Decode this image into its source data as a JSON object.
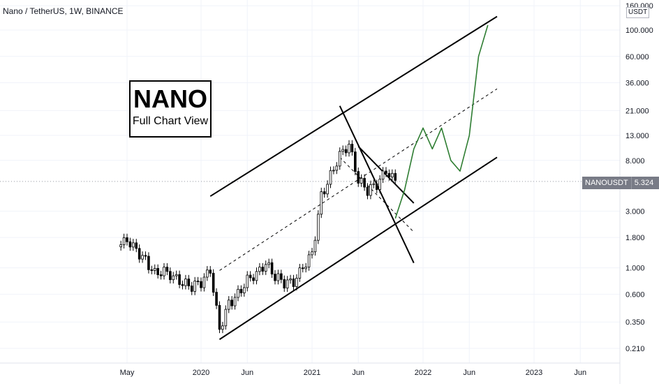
{
  "header": {
    "title": "Nano / TetherUS, 1W, BINANCE"
  },
  "annotation": {
    "title": "NANO",
    "subtitle": "Full Chart View"
  },
  "price_axis": {
    "unit": "USDT",
    "current_symbol": "NANOUSDT",
    "current_value": "5.324"
  },
  "colors": {
    "projection": "#2e7d32",
    "lines": "#000000",
    "candles": "#000000",
    "grid": "#f0f3fa",
    "axis_text": "#131722"
  },
  "chart_data": {
    "type": "line",
    "y_scale": "log",
    "x_axis_labels": [
      "May",
      "2020",
      "Jun",
      "2021",
      "Jun",
      "2022",
      "Jun",
      "2023",
      "Jun"
    ],
    "y_axis_labels": [
      "160.000",
      "100.000",
      "60.000",
      "36.000",
      "21.000",
      "13.000",
      "8.000",
      "5.324",
      "3.000",
      "1.800",
      "1.000",
      "0.600",
      "0.350",
      "0.210"
    ],
    "current_price": 5.324,
    "series": [
      {
        "role": "price",
        "x": [
          "2019-04",
          "2019-05",
          "2019-06",
          "2019-07",
          "2019-08",
          "2019-09",
          "2019-10",
          "2019-11",
          "2019-12",
          "2020-01",
          "2020-02",
          "2020-03",
          "2020-04",
          "2020-05",
          "2020-06",
          "2020-07",
          "2020-08",
          "2020-09",
          "2020-10",
          "2020-11",
          "2020-12",
          "2021-01",
          "2021-02",
          "2021-03",
          "2021-04",
          "2021-05",
          "2021-06",
          "2021-07",
          "2021-08",
          "2021-09",
          "2021-10"
        ],
        "y": [
          1.5,
          1.7,
          1.4,
          1.15,
          0.9,
          0.95,
          0.85,
          0.75,
          0.7,
          0.75,
          0.95,
          0.3,
          0.5,
          0.6,
          0.8,
          0.9,
          1.1,
          0.85,
          0.75,
          0.75,
          1.0,
          1.3,
          4.0,
          6.0,
          9.0,
          11.0,
          5.5,
          4.5,
          5.0,
          6.5,
          5.324
        ]
      },
      {
        "role": "projection",
        "x": [
          "2021-10",
          "2021-11",
          "2021-12",
          "2022-01",
          "2022-02",
          "2022-03",
          "2022-04",
          "2022-05",
          "2022-06",
          "2022-07",
          "2022-08"
        ],
        "y": [
          2.6,
          4.5,
          10,
          15,
          10,
          15,
          8,
          6.5,
          13,
          60,
          110
        ]
      }
    ],
    "y_axis_range": [
      0.19,
      170
    ]
  }
}
